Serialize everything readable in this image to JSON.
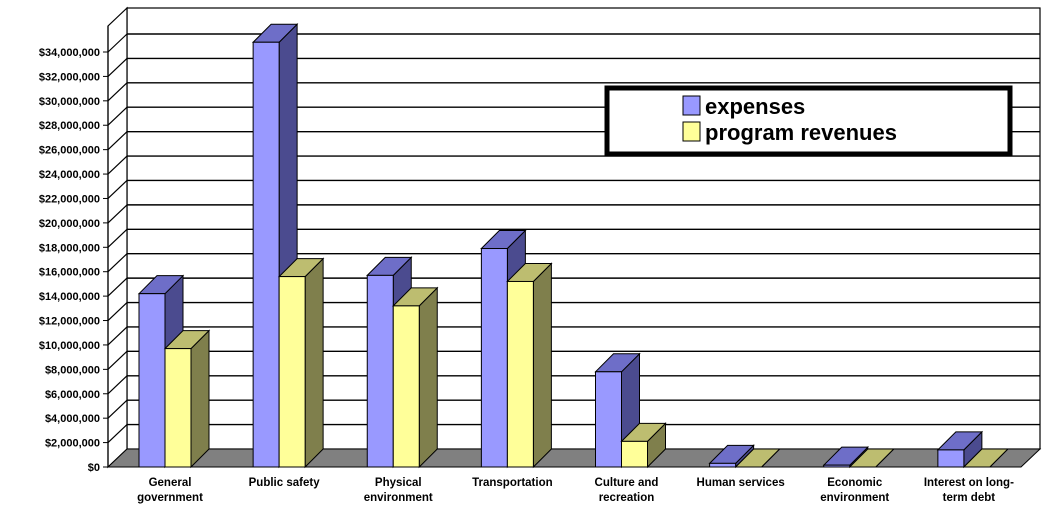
{
  "chart_data": {
    "type": "bar",
    "title": "",
    "xlabel": "",
    "ylabel": "",
    "ylim": [
      0,
      34000000
    ],
    "yticks": [
      "$0",
      "$2,000,000",
      "$4,000,000",
      "$6,000,000",
      "$8,000,000",
      "$10,000,000",
      "$12,000,000",
      "$14,000,000",
      "$16,000,000",
      "$18,000,000",
      "$20,000,000",
      "$22,000,000",
      "$24,000,000",
      "$26,000,000",
      "$28,000,000",
      "$30,000,000",
      "$32,000,000",
      "$34,000,000"
    ],
    "categories": [
      [
        "General",
        "government"
      ],
      [
        "Public safety"
      ],
      [
        "Physical",
        "environment"
      ],
      [
        "Transportation"
      ],
      [
        "Culture and",
        "recreation"
      ],
      [
        "Human services"
      ],
      [
        "Economic",
        "environment"
      ],
      [
        "Interest on long-",
        "term debt"
      ]
    ],
    "grid": true,
    "legend_position": "top-right",
    "series": [
      {
        "name": "expenses",
        "color": "#9999ff",
        "side_color": "#4b4b8f",
        "top_color": "#6e6ec8",
        "values": [
          14200000,
          34800000,
          15700000,
          17900000,
          7800000,
          300000,
          150000,
          1400000
        ]
      },
      {
        "name": "program revenues",
        "color": "#ffff99",
        "side_color": "#7f7f4c",
        "top_color": "#bdbd70",
        "values": [
          9700000,
          15600000,
          13200000,
          15200000,
          2100000,
          0,
          0,
          0
        ]
      }
    ]
  }
}
